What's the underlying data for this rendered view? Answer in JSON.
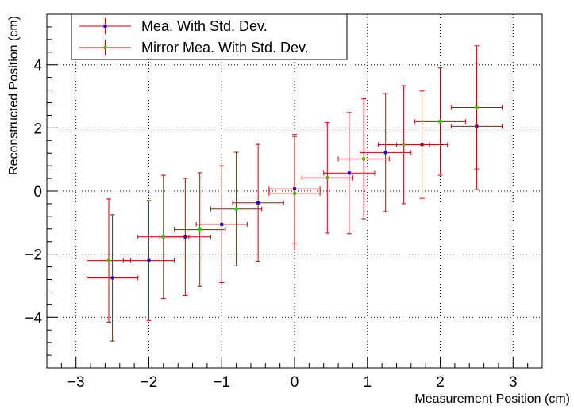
{
  "chart_data": {
    "type": "scatter",
    "xlabel": "Measurement Position (cm)",
    "ylabel": "Reconstructed Position (cm)",
    "xlim": [
      -3.4,
      3.4
    ],
    "ylim": [
      -5.6,
      5.6
    ],
    "x_ticks": [
      "−3",
      "−2",
      "−1",
      "0",
      "1",
      "2",
      "3"
    ],
    "y_ticks": [
      "−4",
      "−2",
      "0",
      "2",
      "4"
    ],
    "grid": true,
    "legend_position": "top-left",
    "series": [
      {
        "name": "Mea. With Std. Dev.",
        "color": "#0000ff",
        "error_color": "#cc0000",
        "points": [
          {
            "x": -2.5,
            "y": -2.75,
            "xerr": 0.35,
            "yerr": 2.0
          },
          {
            "x": -2.0,
            "y": -2.2,
            "xerr": 0.35,
            "yerr": 1.9
          },
          {
            "x": -1.5,
            "y": -1.45,
            "xerr": 0.35,
            "yerr": 1.85
          },
          {
            "x": -1.0,
            "y": -1.05,
            "xerr": 0.35,
            "yerr": 1.85
          },
          {
            "x": -0.5,
            "y": -0.37,
            "xerr": 0.35,
            "yerr": 1.85
          },
          {
            "x": 0.0,
            "y": 0.07,
            "xerr": 0.35,
            "yerr": 1.72
          },
          {
            "x": 0.75,
            "y": 0.57,
            "xerr": 0.35,
            "yerr": 1.92
          },
          {
            "x": 1.25,
            "y": 1.22,
            "xerr": 0.35,
            "yerr": 1.87
          },
          {
            "x": 1.75,
            "y": 1.47,
            "xerr": 0.35,
            "yerr": 1.7
          },
          {
            "x": 2.5,
            "y": 2.05,
            "xerr": 0.35,
            "yerr": 2.0
          }
        ]
      },
      {
        "name": "Mirror Mea. With Std. Dev.",
        "color": "#33cc00",
        "error_color": "#cc0000",
        "points": [
          {
            "x": -2.55,
            "y": -2.2,
            "xerr": 0.3,
            "yerr": 1.95
          },
          {
            "x": -1.8,
            "y": -1.45,
            "xerr": 0.35,
            "yerr": 1.95
          },
          {
            "x": -1.3,
            "y": -1.22,
            "xerr": 0.35,
            "yerr": 1.8
          },
          {
            "x": -0.8,
            "y": -0.57,
            "xerr": 0.35,
            "yerr": 1.8
          },
          {
            "x": 0.0,
            "y": -0.07,
            "xerr": 0.35,
            "yerr": 1.8
          },
          {
            "x": 0.45,
            "y": 0.42,
            "xerr": 0.35,
            "yerr": 1.75
          },
          {
            "x": 0.95,
            "y": 1.02,
            "xerr": 0.35,
            "yerr": 1.9
          },
          {
            "x": 1.5,
            "y": 1.47,
            "xerr": 0.35,
            "yerr": 1.87
          },
          {
            "x": 2.0,
            "y": 2.2,
            "xerr": 0.35,
            "yerr": 1.7
          },
          {
            "x": 2.5,
            "y": 2.65,
            "xerr": 0.35,
            "yerr": 1.95
          }
        ]
      }
    ]
  }
}
